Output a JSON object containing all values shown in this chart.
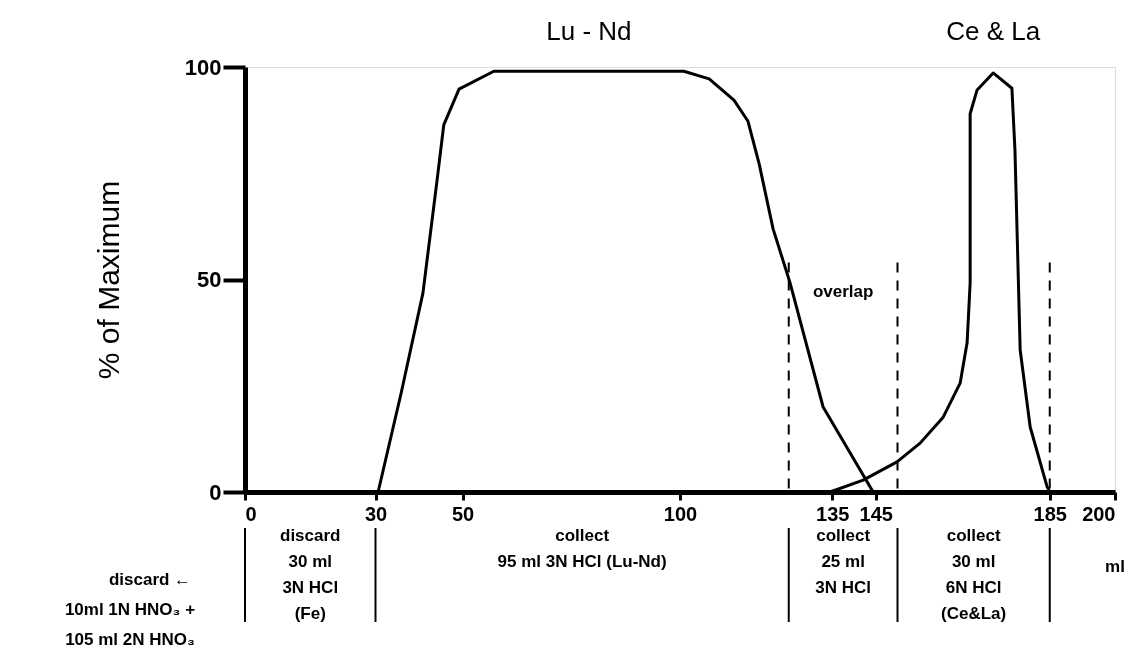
{
  "chart_data": {
    "type": "line",
    "ylabel": "% of Maximum",
    "xlabel": "ml",
    "xlim": [
      0,
      200
    ],
    "xticks": [
      0,
      30,
      50,
      100,
      135,
      145,
      185,
      200
    ],
    "ylim": [
      0,
      100
    ],
    "yticks": [
      0,
      50,
      100
    ],
    "grid": false,
    "marker": "none",
    "line_style": "solid",
    "series": [
      {
        "name": "Lu - Nd",
        "color": "#000000",
        "x": [
          30.6,
          35.9,
          40.9,
          44.1,
          45.7,
          49.2,
          57.2,
          100.9,
          106.7,
          112.4,
          115.6,
          118.2,
          121.4,
          125.3,
          132.9,
          144.4
        ],
        "values": [
          0,
          23.3,
          46.8,
          72.9,
          86.4,
          94.8,
          99,
          99,
          97.2,
          92.2,
          87.3,
          77.2,
          61.9,
          49.2,
          20,
          0
        ]
      },
      {
        "name": "Ce & La",
        "color": "#000000",
        "x": [
          134.5,
          142.1,
          149.9,
          155.2,
          160.5,
          164.4,
          166,
          166.7,
          166.7,
          168.3,
          172,
          176.3,
          177,
          178.2,
          180.5,
          184.4,
          185
        ],
        "values": [
          0,
          2.8,
          7.1,
          11.5,
          17.6,
          25.6,
          35.1,
          49.2,
          89,
          94.6,
          98.6,
          95,
          80.5,
          33.4,
          15.3,
          1.2,
          0
        ]
      }
    ],
    "ref_lines": [
      {
        "axis": "x",
        "value": 125,
        "line_style": "dashed"
      },
      {
        "axis": "x",
        "value": 150,
        "line_style": "dashed"
      },
      {
        "axis": "x",
        "value": 185,
        "line_style": "dashed"
      }
    ],
    "annotations": [
      "discard  ←",
      "10ml 1N HNO₃ +",
      "105 ml 2N HNO₃",
      "overlap",
      "discard\n30 ml\n3N HCl\n(Fe)",
      "collect\n\n95 ml 3N HCl (Lu-Nd)",
      "collect\n25 ml\n3N HCl",
      "collect\n30 ml\n6N HCl\n(Ce&La)"
    ]
  }
}
